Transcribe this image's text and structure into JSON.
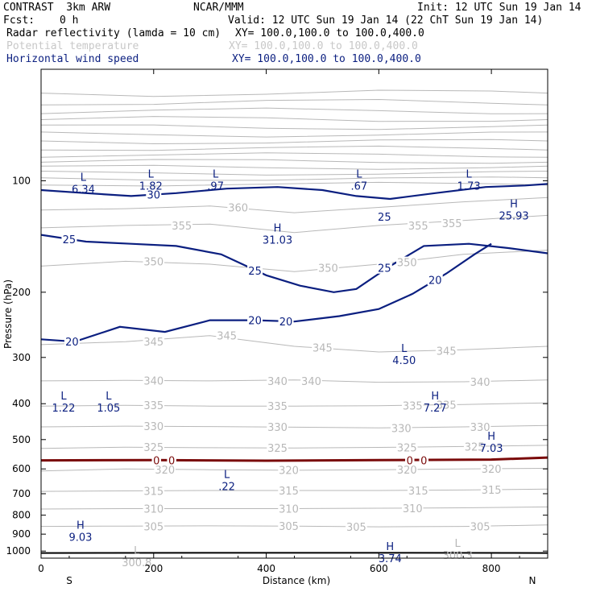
{
  "header": {
    "model": "CONTRAST  3km ARW",
    "org": "NCAR/MMM",
    "init": "Init: 12 UTC Sun 19 Jan 14",
    "fcst_label": "Fcst:",
    "fcst_value": "0 h",
    "valid": "Valid: 12 UTC Sun 19 Jan 14 (22 ChT Sun 19 Jan 14)",
    "fields": [
      {
        "name": "Radar reflectivity (lamda = 10 cm)",
        "xy": "XY= 100.0,100.0 to 100.0,400.0"
      },
      {
        "name": "Potential temperature",
        "xy": "XY= 100.0,100.0 to 100.0,400.0"
      },
      {
        "name": "Horizontal wind speed",
        "xy": "XY= 100.0,100.0 to 100.0,400.0"
      }
    ]
  },
  "colors": {
    "theta": "#b8b8b8",
    "wind": "#0b1f80",
    "zero_line": "#7a0a0a",
    "terrain": "#000000",
    "header_gray": "#c8c8c8"
  },
  "chart_data": {
    "type": "line",
    "xlabel": "Distance (km)",
    "ylabel": "Pressure (hPa)",
    "xlim": [
      0,
      900
    ],
    "ylim": [
      1045,
      50
    ],
    "y_scale": "log",
    "x_ticks": [
      "0",
      "200",
      "400",
      "600",
      "800"
    ],
    "x_tick_values": [
      0,
      200,
      400,
      600,
      800
    ],
    "y_ticks": [
      "100",
      "200",
      "300",
      "400",
      "500",
      "600",
      "700",
      "800",
      "900",
      "1000"
    ],
    "y_tick_values": [
      100,
      200,
      300,
      400,
      500,
      600,
      700,
      800,
      900,
      1000
    ],
    "end_labels": {
      "left": "S",
      "right": "N"
    },
    "theta_contours": [
      {
        "label": "305",
        "x": [
          0,
          150,
          300,
          450,
          600,
          750,
          900
        ],
        "p": [
          858,
          856,
          855,
          856,
          860,
          858,
          850
        ]
      },
      {
        "label": "310",
        "x": [
          0,
          150,
          300,
          450,
          600,
          750,
          900
        ],
        "p": [
          770,
          768,
          768,
          768,
          766,
          764,
          760
        ]
      },
      {
        "label": "315",
        "x": [
          0,
          150,
          300,
          450,
          600,
          750,
          900
        ],
        "p": [
          690,
          688,
          686,
          686,
          686,
          684,
          680
        ]
      },
      {
        "label": "320",
        "x": [
          0,
          150,
          300,
          450,
          600,
          750,
          900
        ],
        "p": [
          608,
          600,
          603,
          605,
          603,
          600,
          598
        ]
      },
      {
        "label": "325",
        "x": [
          0,
          150,
          300,
          450,
          600,
          750,
          900
        ],
        "p": [
          528,
          524,
          526,
          527,
          525,
          522,
          518
        ]
      },
      {
        "label": "330",
        "x": [
          0,
          150,
          300,
          450,
          600,
          750,
          900
        ],
        "p": [
          462,
          460,
          461,
          463,
          465,
          462,
          458
        ]
      },
      {
        "label": "335",
        "x": [
          0,
          150,
          300,
          450,
          600,
          750,
          900
        ],
        "p": [
          406,
          404,
          406,
          406,
          405,
          402,
          398
        ]
      },
      {
        "label": "340",
        "x": [
          0,
          150,
          300,
          450,
          600,
          750,
          900
        ],
        "p": [
          347,
          346,
          347,
          345,
          350,
          349,
          345
        ]
      },
      {
        "label": "345",
        "x": [
          0,
          150,
          300,
          450,
          600,
          750,
          900
        ],
        "p": [
          277,
          272,
          262,
          280,
          290,
          286,
          280
        ]
      },
      {
        "label": "350",
        "x": [
          0,
          150,
          300,
          450,
          600,
          750,
          900
        ],
        "p": [
          170,
          165,
          168,
          176,
          168,
          158,
          154
        ]
      },
      {
        "label": "355",
        "x": [
          0,
          150,
          300,
          450,
          600,
          750,
          900
        ],
        "p": [
          134,
          132,
          131,
          138,
          132,
          128,
          124
        ]
      },
      {
        "label": "360",
        "x": [
          0,
          150,
          300,
          450,
          600,
          750,
          900
        ],
        "p": [
          120,
          119,
          117,
          122,
          118,
          114,
          111
        ]
      }
    ],
    "theta_label_points": [
      {
        "text": "305",
        "x": 560,
        "p": 860
      },
      {
        "text": "305",
        "x": 780,
        "p": 858
      },
      {
        "text": "305",
        "x": 200,
        "p": 857
      },
      {
        "text": "305",
        "x": 440,
        "p": 856
      },
      {
        "text": "310",
        "x": 200,
        "p": 768
      },
      {
        "text": "310",
        "x": 440,
        "p": 768
      },
      {
        "text": "310",
        "x": 660,
        "p": 766
      },
      {
        "text": "315",
        "x": 200,
        "p": 688
      },
      {
        "text": "315",
        "x": 440,
        "p": 686
      },
      {
        "text": "315",
        "x": 670,
        "p": 686
      },
      {
        "text": "315",
        "x": 800,
        "p": 682
      },
      {
        "text": "320",
        "x": 220,
        "p": 602
      },
      {
        "text": "320",
        "x": 440,
        "p": 604
      },
      {
        "text": "320",
        "x": 650,
        "p": 603
      },
      {
        "text": "320",
        "x": 800,
        "p": 600
      },
      {
        "text": "325",
        "x": 200,
        "p": 524
      },
      {
        "text": "325",
        "x": 420,
        "p": 526
      },
      {
        "text": "325",
        "x": 650,
        "p": 525
      },
      {
        "text": "325",
        "x": 770,
        "p": 522
      },
      {
        "text": "330",
        "x": 200,
        "p": 460
      },
      {
        "text": "330",
        "x": 420,
        "p": 462
      },
      {
        "text": "330",
        "x": 640,
        "p": 465
      },
      {
        "text": "330",
        "x": 780,
        "p": 462
      },
      {
        "text": "335",
        "x": 200,
        "p": 404
      },
      {
        "text": "335",
        "x": 420,
        "p": 406
      },
      {
        "text": "335",
        "x": 660,
        "p": 405
      },
      {
        "text": "335",
        "x": 720,
        "p": 403
      },
      {
        "text": "340",
        "x": 200,
        "p": 346
      },
      {
        "text": "340",
        "x": 420,
        "p": 347
      },
      {
        "text": "340",
        "x": 480,
        "p": 347
      },
      {
        "text": "340",
        "x": 780,
        "p": 349
      },
      {
        "text": "345",
        "x": 200,
        "p": 272
      },
      {
        "text": "345",
        "x": 330,
        "p": 262
      },
      {
        "text": "345",
        "x": 500,
        "p": 282
      },
      {
        "text": "345",
        "x": 720,
        "p": 288
      },
      {
        "text": "350",
        "x": 200,
        "p": 165
      },
      {
        "text": "350",
        "x": 510,
        "p": 172
      },
      {
        "text": "350",
        "x": 650,
        "p": 166
      },
      {
        "text": "355",
        "x": 250,
        "p": 132
      },
      {
        "text": "355",
        "x": 670,
        "p": 132
      },
      {
        "text": "355",
        "x": 730,
        "p": 130
      },
      {
        "text": "360",
        "x": 350,
        "p": 118
      }
    ],
    "wind_contours": [
      {
        "label": "30",
        "x": [
          0,
          80,
          160,
          240,
          330,
          420,
          500,
          560,
          620,
          700,
          790,
          860,
          900
        ],
        "p": [
          106,
          108,
          110,
          108,
          105,
          104,
          106,
          110,
          112,
          108,
          104,
          103,
          102
        ]
      },
      {
        "label": "25",
        "x": [
          0,
          80,
          160,
          240,
          320,
          400,
          460,
          520,
          560,
          620,
          680,
          760,
          830,
          900
        ],
        "p": [
          140,
          146,
          148,
          150,
          158,
          180,
          192,
          200,
          196,
          170,
          150,
          148,
          152,
          157
        ]
      },
      {
        "label": "20",
        "x": [
          0,
          60,
          140,
          220,
          300,
          380,
          450,
          530,
          600,
          660,
          720,
          770,
          800
        ],
        "p": [
          268,
          272,
          248,
          256,
          238,
          238,
          240,
          232,
          222,
          202,
          178,
          158,
          148
        ]
      }
    ],
    "wind_label_points": [
      {
        "text": "30",
        "x": 200,
        "p": 109
      },
      {
        "text": "25",
        "x": 50,
        "p": 144
      },
      {
        "text": "25",
        "x": 380,
        "p": 175
      },
      {
        "text": "25",
        "x": 610,
        "p": 172
      },
      {
        "text": "25",
        "x": 610,
        "p": 125
      },
      {
        "text": "20",
        "x": 55,
        "p": 272
      },
      {
        "text": "20",
        "x": 380,
        "p": 238
      },
      {
        "text": "20",
        "x": 435,
        "p": 240
      },
      {
        "text": "20",
        "x": 700,
        "p": 185
      }
    ],
    "zero_line": {
      "label": "0",
      "x": [
        0,
        200,
        400,
        600,
        800,
        900
      ],
      "p": [
        569,
        568,
        570,
        568,
        566,
        559
      ]
    },
    "zero_labels": [
      {
        "text": "0",
        "x": 205,
        "p": 568
      },
      {
        "text": "0",
        "x": 232,
        "p": 568
      },
      {
        "text": "0",
        "x": 655,
        "p": 568
      },
      {
        "text": "0",
        "x": 680,
        "p": 568
      }
    ],
    "terrain": {
      "x": [
        0,
        300,
        600,
        900
      ],
      "p": [
        1012,
        1011,
        1011,
        1012
      ]
    },
    "extrema": [
      {
        "kind": "L",
        "value": "6.34",
        "x": 75,
        "p": 100,
        "field": "wind"
      },
      {
        "kind": "L",
        "value": "1.82",
        "x": 195,
        "p": 98,
        "field": "wind"
      },
      {
        "kind": "L",
        "value": ".97",
        "x": 310,
        "p": 98,
        "field": "wind"
      },
      {
        "kind": "L",
        "value": ".67",
        "x": 565,
        "p": 98,
        "field": "wind"
      },
      {
        "kind": "L",
        "value": "1.73",
        "x": 760,
        "p": 98,
        "field": "wind"
      },
      {
        "kind": "H",
        "value": "25.93",
        "x": 840,
        "p": 118,
        "field": "wind"
      },
      {
        "kind": "H",
        "value": "31.03",
        "x": 420,
        "p": 137,
        "field": "wind"
      },
      {
        "kind": "L",
        "value": "4.50",
        "x": 645,
        "p": 290,
        "field": "wind"
      },
      {
        "kind": "L",
        "value": "1.22",
        "x": 40,
        "p": 390,
        "field": "wind"
      },
      {
        "kind": "L",
        "value": "1.05",
        "x": 120,
        "p": 390,
        "field": "wind"
      },
      {
        "kind": "H",
        "value": "7.27",
        "x": 700,
        "p": 390,
        "field": "wind"
      },
      {
        "kind": "H",
        "value": "7.03",
        "x": 800,
        "p": 500,
        "field": "wind"
      },
      {
        "kind": "L",
        "value": ".22",
        "x": 330,
        "p": 635,
        "field": "wind"
      },
      {
        "kind": "H",
        "value": "9.03",
        "x": 70,
        "p": 870,
        "field": "wind"
      },
      {
        "kind": "H",
        "value": "3.74",
        "x": 620,
        "p": 995,
        "field": "wind"
      },
      {
        "kind": "L",
        "value": "300.8",
        "x": 170,
        "p": 1020,
        "field": "theta"
      },
      {
        "kind": "L",
        "value": "300.3",
        "x": 740,
        "p": 975,
        "field": "theta"
      }
    ]
  }
}
